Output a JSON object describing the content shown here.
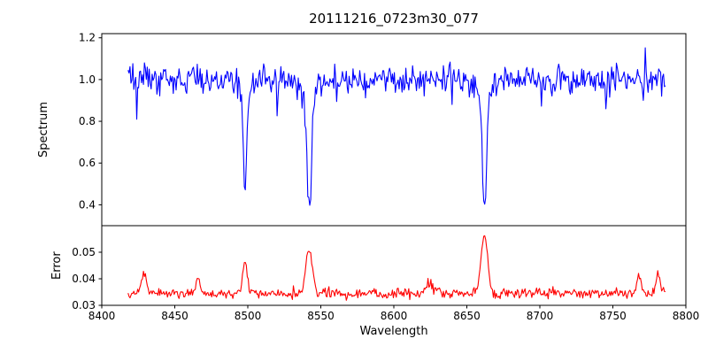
{
  "figure": {
    "title": "20111216_0723m30_077",
    "xlabel": "Wavelength",
    "background": "#ffffff",
    "x_axis": {
      "lim": [
        8400,
        8800
      ],
      "tick_values": [
        8400,
        8450,
        8500,
        8550,
        8600,
        8650,
        8700,
        8750,
        8800
      ],
      "tick_labels": [
        "8400",
        "8450",
        "8500",
        "8550",
        "8600",
        "8650",
        "8700",
        "8750",
        "8800"
      ]
    }
  },
  "chart_data": [
    {
      "type": "line",
      "name": "spectrum",
      "ylabel": "Spectrum",
      "color": "#0000ff",
      "ylim": [
        0.3,
        1.22
      ],
      "ytick_values": [
        0.4,
        0.6,
        0.8,
        1.0,
        1.2
      ],
      "ytick_labels": [
        "0.4",
        "0.6",
        "0.8",
        "1.0",
        "1.2"
      ],
      "x_start": 8418,
      "x_end": 8786,
      "n_points": 560,
      "baseline": 1.0,
      "noise_std": 0.032,
      "seed": 12,
      "absorption_lines": [
        {
          "center": 8498.0,
          "depth": 0.47,
          "sigma": 1.1,
          "wing_depth": 0.06,
          "wing_sigma": 4.0
        },
        {
          "center": 8542.1,
          "depth": 0.55,
          "sigma": 1.5,
          "wing_depth": 0.09,
          "wing_sigma": 5.0
        },
        {
          "center": 8662.1,
          "depth": 0.55,
          "sigma": 1.4,
          "wing_depth": 0.09,
          "wing_sigma": 5.0
        }
      ],
      "spikes": [
        {
          "x": 8424,
          "dy": -0.19
        },
        {
          "x": 8429,
          "dy": 0.13
        },
        {
          "x": 8520,
          "dy": -0.14
        },
        {
          "x": 8561,
          "dy": -0.09
        },
        {
          "x": 8640,
          "dy": -0.08
        },
        {
          "x": 8701,
          "dy": -0.11
        },
        {
          "x": 8745,
          "dy": -0.09
        },
        {
          "x": 8772,
          "dy": 0.15
        }
      ]
    },
    {
      "type": "line",
      "name": "error",
      "ylabel": "Error",
      "color": "#ff0000",
      "ylim": [
        0.03,
        0.06
      ],
      "ytick_values": [
        0.03,
        0.04,
        0.05
      ],
      "ytick_labels": [
        "0.03",
        "0.04",
        "0.05"
      ],
      "x_start": 8418,
      "x_end": 8786,
      "n_points": 560,
      "baseline": 0.0345,
      "noise_std": 0.0009,
      "seed": 5,
      "peaks": [
        {
          "center": 8429,
          "height": 0.0075,
          "sigma": 1.5
        },
        {
          "center": 8466,
          "height": 0.006,
          "sigma": 1.2
        },
        {
          "center": 8498,
          "height": 0.0125,
          "sigma": 1.5
        },
        {
          "center": 8542,
          "height": 0.017,
          "sigma": 2.2
        },
        {
          "center": 8625,
          "height": 0.0035,
          "sigma": 3.0
        },
        {
          "center": 8662,
          "height": 0.0225,
          "sigma": 2.2
        },
        {
          "center": 8768,
          "height": 0.0075,
          "sigma": 1.3
        },
        {
          "center": 8781,
          "height": 0.008,
          "sigma": 1.3
        }
      ]
    }
  ]
}
